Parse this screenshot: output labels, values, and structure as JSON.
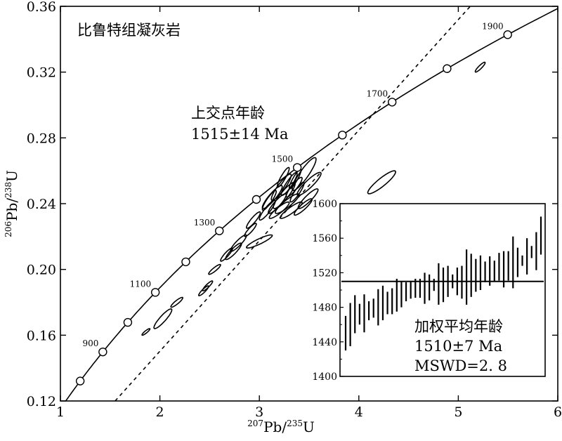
{
  "chart_data": [
    {
      "type": "scatter",
      "subtype": "concordia",
      "title": "比鲁特组凝灰岩",
      "xlabel": {
        "sup1": "207",
        "el1": "Pb/",
        "sup2": "235",
        "el2": "U"
      },
      "ylabel": {
        "sup1": "206",
        "el1": "Pb/",
        "sup2": "238",
        "el2": "U"
      },
      "xlim": [
        1,
        6
      ],
      "ylim": [
        0.12,
        0.36
      ],
      "xticks": [
        "1",
        "2",
        "3",
        "4",
        "5",
        "6"
      ],
      "yticks": [
        "0.12",
        "0.16",
        "0.20",
        "0.24",
        "0.28",
        "0.32",
        "0.36"
      ],
      "concordia_ages_Ma": [
        800,
        900,
        1000,
        1100,
        1200,
        1300,
        1400,
        1500,
        1600,
        1700,
        1800,
        1900
      ],
      "concordia_labels": [
        "900",
        "1100",
        "1300",
        "1500",
        "1700",
        "1900"
      ],
      "discordia": {
        "from": [
          1.55,
          0.12
        ],
        "to": [
          5.12,
          0.36
        ]
      },
      "annotation": {
        "line1": "上交点年龄",
        "line2": "1515±14 Ma"
      },
      "ellipses": [
        [
          3.45,
          0.258,
          0.12,
          0.01
        ],
        [
          3.5,
          0.252,
          0.12,
          0.007
        ],
        [
          3.49,
          0.243,
          0.1,
          0.006
        ],
        [
          3.44,
          0.238,
          0.09,
          0.005
        ],
        [
          3.13,
          0.244,
          0.1,
          0.007
        ],
        [
          3.22,
          0.25,
          0.1,
          0.008
        ],
        [
          3.3,
          0.252,
          0.08,
          0.007
        ],
        [
          3.25,
          0.245,
          0.11,
          0.008
        ],
        [
          3.35,
          0.25,
          0.08,
          0.006
        ],
        [
          3.18,
          0.24,
          0.09,
          0.006
        ],
        [
          3.28,
          0.24,
          0.12,
          0.006
        ],
        [
          3.38,
          0.247,
          0.07,
          0.006
        ],
        [
          3.08,
          0.236,
          0.08,
          0.006
        ],
        [
          3.2,
          0.236,
          0.1,
          0.005
        ],
        [
          3.32,
          0.236,
          0.11,
          0.005
        ],
        [
          3.1,
          0.242,
          0.07,
          0.006
        ],
        [
          3.36,
          0.255,
          0.06,
          0.006
        ],
        [
          3.24,
          0.256,
          0.06,
          0.006
        ],
        [
          2.94,
          0.23,
          0.07,
          0.005
        ],
        [
          2.91,
          0.224,
          0.06,
          0.004
        ],
        [
          3.0,
          0.217,
          0.13,
          0.004
        ],
        [
          2.79,
          0.216,
          0.08,
          0.005
        ],
        [
          2.74,
          0.211,
          0.08,
          0.005
        ],
        [
          2.67,
          0.209,
          0.06,
          0.004
        ],
        [
          2.55,
          0.2,
          0.06,
          0.003
        ],
        [
          2.48,
          0.19,
          0.05,
          0.003
        ],
        [
          2.44,
          0.187,
          0.05,
          0.003
        ],
        [
          2.17,
          0.18,
          0.06,
          0.003
        ],
        [
          2.03,
          0.17,
          0.09,
          0.006
        ],
        [
          1.86,
          0.162,
          0.04,
          0.002
        ],
        [
          4.23,
          0.253,
          0.14,
          0.007
        ],
        [
          5.22,
          0.323,
          0.05,
          0.003
        ]
      ]
    },
    {
      "type": "bar",
      "subtype": "weighted-mean",
      "ylim": [
        1400,
        1600
      ],
      "yticks": [
        "1400",
        "1440",
        "1480",
        "1520",
        "1560",
        "1600"
      ],
      "mean": 1510,
      "text": {
        "line1": "加权平均年龄",
        "line2": "1510±7 Ma",
        "line3": "MSWD=2. 8"
      },
      "ages": [
        1450,
        1460,
        1472,
        1472,
        1473,
        1476,
        1479,
        1480,
        1485,
        1485,
        1487,
        1494,
        1495,
        1498,
        1500,
        1502,
        1502,
        1502,
        1503,
        1506,
        1507,
        1506,
        1510,
        1510,
        1510,
        1509,
        1515,
        1517,
        1517,
        1520,
        1521,
        1522,
        1522,
        1527,
        1524,
        1528,
        1532,
        1532,
        1534,
        1539,
        1544,
        1545,
        1563
      ],
      "errors": [
        20,
        25,
        22,
        12,
        22,
        11,
        11,
        21,
        20,
        13,
        15,
        19,
        15,
        11,
        10,
        11,
        11,
        18,
        15,
        7,
        24,
        20,
        18,
        8,
        16,
        19,
        32,
        25,
        19,
        20,
        12,
        17,
        12,
        16,
        21,
        17,
        30,
        17,
        6,
        21,
        7,
        22,
        22
      ]
    }
  ]
}
